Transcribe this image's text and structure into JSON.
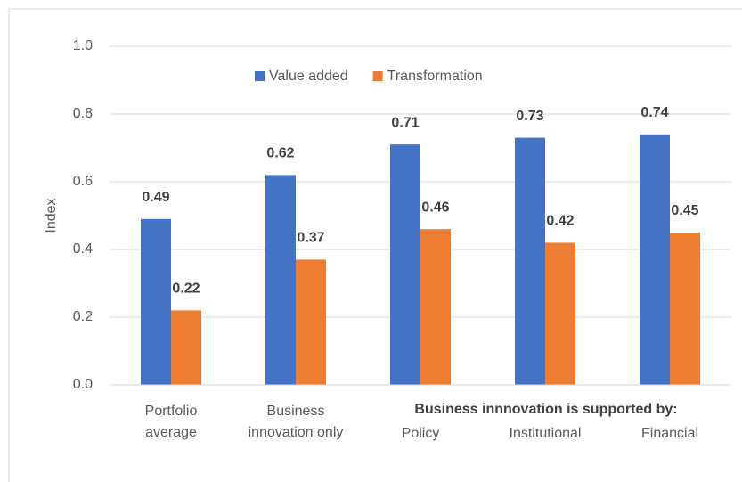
{
  "chart_data": {
    "type": "bar",
    "categories": [
      "Portfolio average",
      "Business innovation only",
      "Policy",
      "Institutional",
      "Financial"
    ],
    "series": [
      {
        "name": "Value added",
        "color": "#4472c4",
        "values": [
          0.49,
          0.62,
          0.71,
          0.73,
          0.74
        ]
      },
      {
        "name": "Transformation",
        "color": "#ed7d31",
        "values": [
          0.22,
          0.37,
          0.46,
          0.42,
          0.45
        ]
      }
    ],
    "ylabel": "Index",
    "annotation": "Business innnovation is supported by:",
    "ylim": [
      0,
      1
    ],
    "yticks": [
      {
        "value": 0,
        "label": "0.0"
      },
      0.2,
      0.4,
      0.6,
      0.8,
      {
        "value": 1,
        "label": "1.0"
      }
    ],
    "grid": true,
    "legend": "top"
  }
}
